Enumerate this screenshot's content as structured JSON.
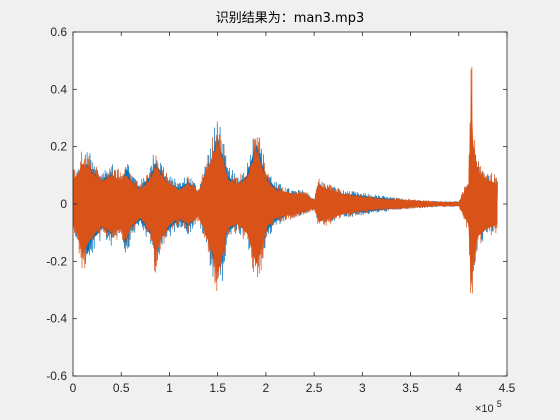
{
  "window": {
    "background": "#f0f0f0"
  },
  "chart_data": {
    "type": "line",
    "title": "识别结果为：man3.mp3",
    "xlabel": "",
    "ylabel": "",
    "xlim": [
      0,
      450000
    ],
    "ylim": [
      -0.6,
      0.6
    ],
    "x_tick_values": [
      0,
      50000,
      100000,
      150000,
      200000,
      250000,
      300000,
      350000,
      400000,
      450000
    ],
    "x_tick_labels": [
      "0",
      "0.5",
      "1",
      "1.5",
      "2",
      "2.5",
      "3",
      "3.5",
      "4",
      "4.5"
    ],
    "x_exponent_label": "×10",
    "x_exponent_power": "5",
    "y_tick_values": [
      -0.6,
      -0.4,
      -0.2,
      0,
      0.2,
      0.4,
      0.6
    ],
    "y_tick_labels": [
      "-0.6",
      "-0.4",
      "-0.2",
      "0",
      "0.2",
      "0.4",
      "0.6"
    ],
    "grid": false,
    "series": [
      {
        "color": "#0072bd",
        "x": [
          0,
          5000,
          10000,
          15000,
          20000,
          30000,
          40000,
          50000,
          55000,
          60000,
          70000,
          80000,
          85000,
          90000,
          100000,
          110000,
          120000,
          130000,
          140000,
          145000,
          150000,
          153000,
          157000,
          160000,
          170000,
          180000,
          190000,
          195000,
          200000,
          210000,
          220000,
          230000,
          240000,
          250000,
          255000,
          260000,
          280000,
          300000,
          320000,
          340000,
          360000,
          380000,
          400000,
          410000,
          415000,
          420000,
          430000,
          440000
        ],
        "upper": [
          0.1,
          0.13,
          0.15,
          0.2,
          0.16,
          0.12,
          0.15,
          0.1,
          0.18,
          0.12,
          0.08,
          0.14,
          0.2,
          0.17,
          0.1,
          0.08,
          0.11,
          0.06,
          0.18,
          0.24,
          0.33,
          0.28,
          0.2,
          0.14,
          0.1,
          0.14,
          0.3,
          0.22,
          0.14,
          0.08,
          0.06,
          0.05,
          0.05,
          0.02,
          0.09,
          0.08,
          0.05,
          0.04,
          0.03,
          0.02,
          0.015,
          0.01,
          0.01,
          0.08,
          0.25,
          0.15,
          0.12,
          0.08
        ],
        "lower": [
          -0.08,
          -0.14,
          -0.17,
          -0.25,
          -0.18,
          -0.12,
          -0.15,
          -0.1,
          -0.2,
          -0.12,
          -0.08,
          -0.15,
          -0.22,
          -0.18,
          -0.12,
          -0.08,
          -0.11,
          -0.06,
          -0.18,
          -0.26,
          -0.3,
          -0.32,
          -0.22,
          -0.14,
          -0.1,
          -0.14,
          -0.25,
          -0.22,
          -0.14,
          -0.08,
          -0.06,
          -0.05,
          -0.04,
          -0.02,
          -0.08,
          -0.07,
          -0.05,
          -0.04,
          -0.03,
          -0.02,
          -0.015,
          -0.01,
          -0.01,
          -0.08,
          -0.28,
          -0.15,
          -0.12,
          -0.08
        ]
      },
      {
        "color": "#d95319",
        "x": [
          0,
          5000,
          10000,
          15000,
          20000,
          30000,
          40000,
          50000,
          55000,
          60000,
          70000,
          80000,
          85000,
          90000,
          100000,
          110000,
          120000,
          130000,
          140000,
          145000,
          150000,
          153000,
          157000,
          160000,
          170000,
          180000,
          190000,
          195000,
          200000,
          210000,
          220000,
          230000,
          240000,
          250000,
          255000,
          260000,
          280000,
          300000,
          320000,
          340000,
          360000,
          380000,
          400000,
          410000,
          413000,
          415000,
          420000,
          430000,
          440000
        ],
        "upper": [
          0.12,
          0.15,
          0.2,
          0.18,
          0.15,
          0.11,
          0.14,
          0.12,
          0.14,
          0.11,
          0.07,
          0.12,
          0.18,
          0.15,
          0.1,
          0.07,
          0.1,
          0.06,
          0.18,
          0.24,
          0.3,
          0.26,
          0.2,
          0.12,
          0.1,
          0.12,
          0.26,
          0.2,
          0.12,
          0.07,
          0.06,
          0.05,
          0.05,
          0.02,
          0.1,
          0.08,
          0.05,
          0.035,
          0.025,
          0.02,
          0.015,
          0.01,
          0.01,
          0.1,
          0.56,
          0.3,
          0.16,
          0.12,
          0.1
        ],
        "lower": [
          -0.1,
          -0.15,
          -0.25,
          -0.2,
          -0.16,
          -0.11,
          -0.14,
          -0.12,
          -0.18,
          -0.11,
          -0.07,
          -0.13,
          -0.25,
          -0.18,
          -0.1,
          -0.07,
          -0.1,
          -0.06,
          -0.18,
          -0.24,
          -0.35,
          -0.28,
          -0.2,
          -0.12,
          -0.1,
          -0.14,
          -0.3,
          -0.24,
          -0.12,
          -0.07,
          -0.06,
          -0.05,
          -0.04,
          -0.02,
          -0.09,
          -0.08,
          -0.05,
          -0.035,
          -0.025,
          -0.02,
          -0.015,
          -0.01,
          -0.01,
          -0.1,
          -0.42,
          -0.3,
          -0.16,
          -0.12,
          -0.1
        ]
      }
    ]
  }
}
